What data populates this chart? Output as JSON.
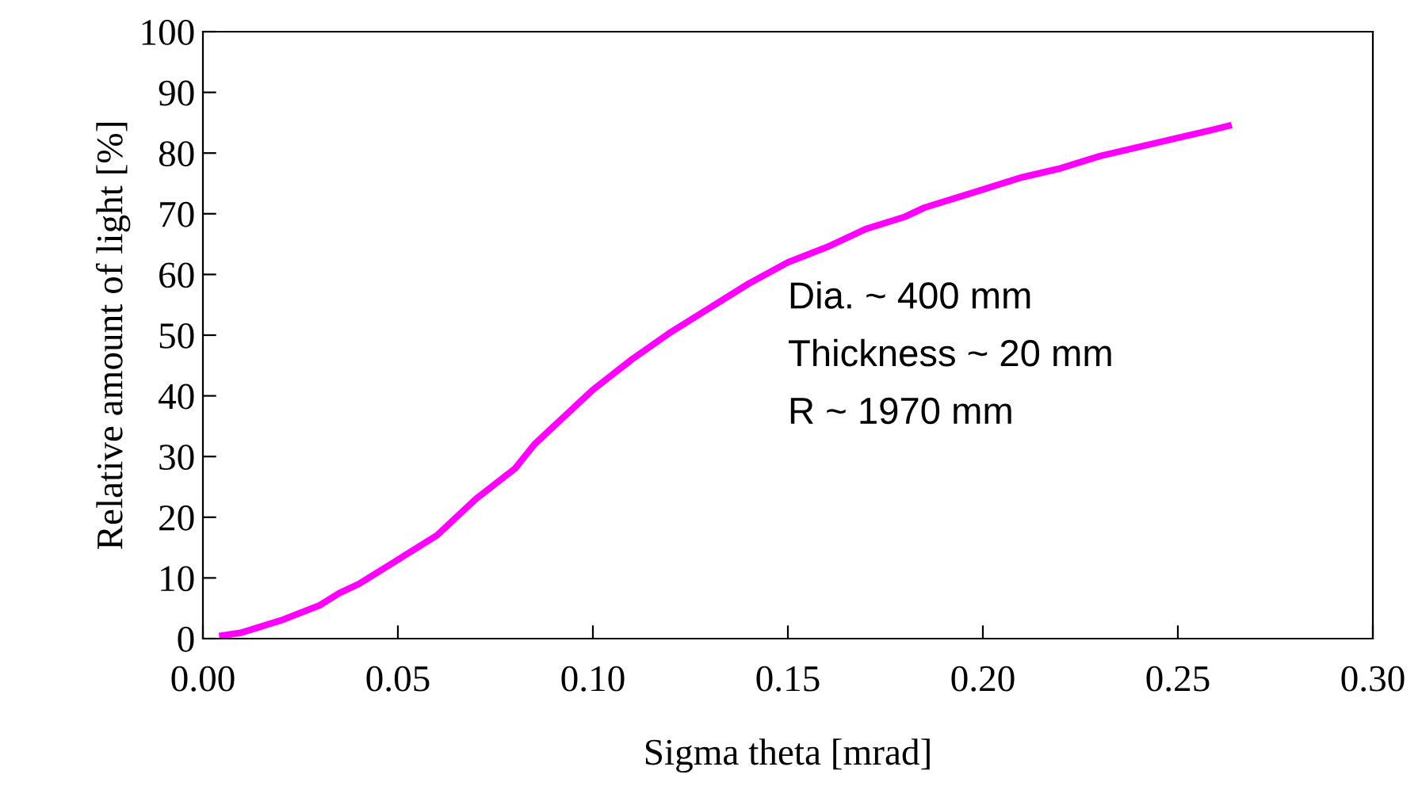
{
  "chart_data": {
    "type": "line",
    "xlabel": "Sigma theta [mrad]",
    "ylabel": "Relative amount of light [%]",
    "x": [
      0.005,
      0.01,
      0.02,
      0.03,
      0.035,
      0.04,
      0.05,
      0.06,
      0.07,
      0.08,
      0.085,
      0.09,
      0.095,
      0.1,
      0.11,
      0.12,
      0.13,
      0.14,
      0.15,
      0.16,
      0.17,
      0.18,
      0.185,
      0.2,
      0.21,
      0.22,
      0.23,
      0.24,
      0.25,
      0.26,
      0.263
    ],
    "series": [
      {
        "color": "#ff00ff",
        "values": [
          0.5,
          1,
          3,
          5.5,
          7.5,
          9,
          13,
          17,
          23,
          28,
          32,
          35,
          38,
          41,
          46,
          50.5,
          54.5,
          58.5,
          62,
          64.5,
          67.5,
          69.5,
          71,
          74,
          76,
          77.5,
          79.5,
          81,
          82.5,
          84,
          84.5
        ]
      }
    ],
    "xlim": [
      0,
      0.3
    ],
    "xticks": [
      {
        "value": 0,
        "label": "0.00"
      },
      {
        "value": 0.05,
        "label": "0.05"
      },
      {
        "value": 0.1,
        "label": "0.10"
      },
      {
        "value": 0.15,
        "label": "0.15"
      },
      {
        "value": 0.2,
        "label": "0.20"
      },
      {
        "value": 0.25,
        "label": "0.25"
      },
      {
        "value": 0.3,
        "label": "0.30"
      }
    ],
    "ylim": [
      0,
      100
    ],
    "yticks": [
      0,
      10,
      20,
      30,
      40,
      50,
      60,
      70,
      80,
      90,
      100
    ],
    "grid": false,
    "legend": false,
    "marker": "none",
    "line_style": "solid",
    "annotations": [
      "Dia. ~ 400 mm",
      "Thickness ~ 20 mm",
      "R ~ 1970 mm"
    ]
  }
}
